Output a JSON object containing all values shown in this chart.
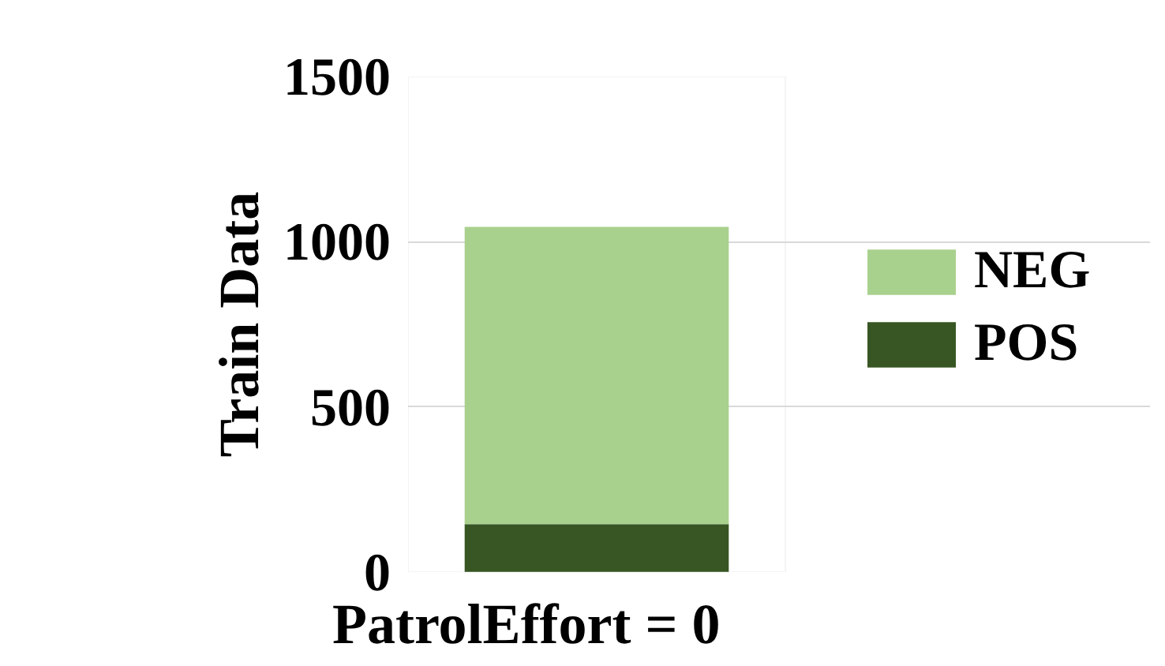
{
  "chart_data": {
    "type": "bar",
    "stacked": true,
    "xlabel": "PatrolEffort = 0",
    "ylabel": "Train Data",
    "categories": [
      null
    ],
    "series": [
      {
        "name": "POS",
        "color": "#375623",
        "values": [
          145
        ]
      },
      {
        "name": "NEG",
        "color": "#a9d18e",
        "values": [
          900
        ]
      }
    ],
    "ylim": [
      0,
      1500
    ],
    "yticks": [
      0,
      500,
      1000,
      1500
    ],
    "grid": "y",
    "legend": "right"
  }
}
